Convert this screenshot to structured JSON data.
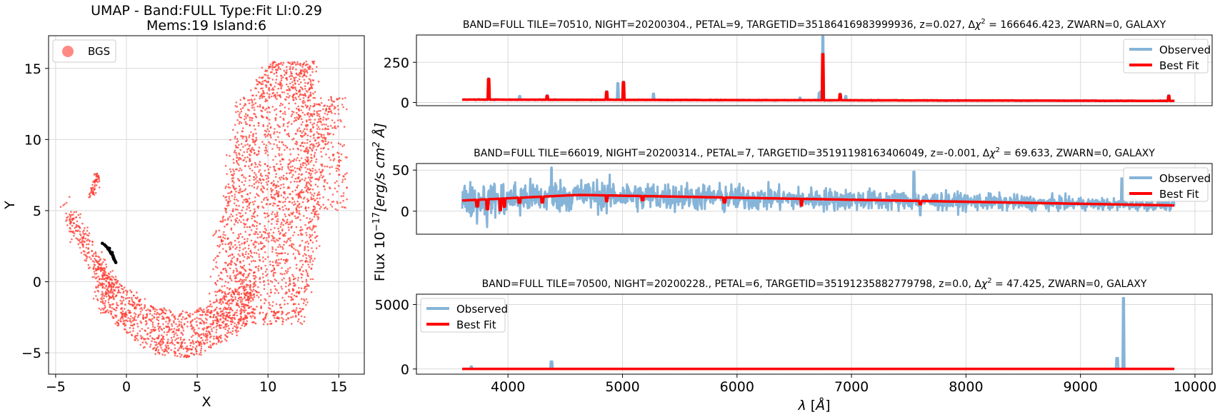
{
  "figure": {
    "ylabel": "Flux 10$^{-17}$[$erg/s\\,cm^2\\,\\AA$]",
    "xlabel": "λ [Å]"
  },
  "colors": {
    "observed": "#86b4d8",
    "best_fit": "#ff0000",
    "members": "#000000",
    "points": "#ff3b30",
    "grid": "#d9d9d9"
  },
  "chart_data": [
    {
      "type": "scatter",
      "title_line1": "UMAP  -  Band:FULL Type:Fit Ll:0.29",
      "title_line2": "Mems:19 Island:6",
      "xlabel": "X",
      "ylabel": "Y",
      "xlim": [
        -5.5,
        16.8
      ],
      "ylim": [
        -6.5,
        17.3
      ],
      "xticks": [
        -5,
        0,
        5,
        10,
        15
      ],
      "yticks": [
        -5,
        0,
        5,
        10,
        15
      ],
      "legend": {
        "position": "top-left",
        "entries": [
          "BGS"
        ]
      },
      "grid": true,
      "series": [
        {
          "name": "BGS",
          "color": "#ff3b30",
          "region": "u-shaped cloud",
          "x_range": [
            -4.4,
            15.6
          ],
          "y_range": [
            -5.4,
            16.2
          ]
        },
        {
          "members": [
            [
              -1.7,
              2.7
            ],
            [
              -1.55,
              2.6
            ],
            [
              -1.45,
              2.5
            ],
            [
              -1.35,
              2.4
            ],
            [
              -1.3,
              2.3
            ],
            [
              -1.2,
              2.2
            ],
            [
              -1.15,
              2.1
            ],
            [
              -1.1,
              2.0
            ],
            [
              -1.05,
              1.95
            ],
            [
              -1.0,
              1.9
            ],
            [
              -0.95,
              1.85
            ],
            [
              -0.9,
              1.7
            ],
            [
              -0.9,
              1.6
            ],
            [
              -0.85,
              1.55
            ],
            [
              -0.8,
              1.45
            ],
            [
              -0.75,
              1.35
            ],
            [
              -1.2,
              2.35
            ],
            [
              -1.0,
              2.05
            ],
            [
              -0.95,
              1.75
            ]
          ]
        }
      ]
    },
    {
      "type": "line",
      "title": "BAND=FULL TILE=70510, NIGHT=20200304., PETAL=9, TARGETID=35186416983999936, z=0.027, Δχ² = 166646.423, ZWARN=0, GALAXY",
      "xlim": [
        3200,
        10150
      ],
      "ylim": [
        -20,
        420
      ],
      "yticks": [
        0,
        250
      ],
      "legend": {
        "position": "top-right",
        "entries": [
          "Observed",
          "Best Fit"
        ]
      },
      "grid": true,
      "continuum": 18,
      "lines": [
        [
          3830,
          150
        ],
        [
          4103,
          40
        ],
        [
          4342,
          45
        ],
        [
          4863,
          70
        ],
        [
          4960,
          120
        ],
        [
          5008,
          130
        ],
        [
          5270,
          55
        ],
        [
          6550,
          30
        ],
        [
          6717,
          60
        ],
        [
          6731,
          70
        ],
        [
          6750,
          410
        ],
        [
          6900,
          55
        ],
        [
          6950,
          40
        ],
        [
          9770,
          45
        ]
      ],
      "fit_lines": [
        [
          3830,
          145
        ],
        [
          4342,
          40
        ],
        [
          4863,
          65
        ],
        [
          5008,
          125
        ],
        [
          6750,
          300
        ],
        [
          6900,
          50
        ],
        [
          9770,
          40
        ]
      ]
    },
    {
      "type": "line",
      "title": "BAND=FULL TILE=66019, NIGHT=20200314., PETAL=7, TARGETID=35191198163406049, z=-0.001, Δχ² = 69.633, ZWARN=0, GALAXY",
      "xlim": [
        3200,
        10150
      ],
      "ylim": [
        -28,
        58
      ],
      "yticks": [
        0,
        50
      ],
      "legend": {
        "position": "top-right",
        "entries": [
          "Observed",
          "Best Fit"
        ]
      },
      "grid": true,
      "fit_start": 13,
      "fit_peak": 20,
      "fit_end": 7,
      "dips": [
        [
          3730,
          8
        ],
        [
          3820,
          12
        ],
        [
          3934,
          14
        ],
        [
          3969,
          10
        ],
        [
          4101,
          6
        ],
        [
          4300,
          7
        ],
        [
          4861,
          7
        ],
        [
          5175,
          5
        ],
        [
          5890,
          6
        ],
        [
          6563,
          8
        ],
        [
          7600,
          4
        ]
      ],
      "obs_spikes": [
        [
          3590,
          52
        ],
        [
          3595,
          -25
        ],
        [
          4380,
          53
        ],
        [
          7545,
          48
        ],
        [
          7600,
          -5
        ],
        [
          9360,
          40
        ],
        [
          9900,
          -20
        ]
      ]
    },
    {
      "type": "line",
      "title": "BAND=FULL TILE=70500, NIGHT=20200228., PETAL=6, TARGETID=35191235882779798, z=0.0, Δχ² = 47.425, ZWARN=0, GALAXY",
      "xlim": [
        3200,
        10150
      ],
      "ylim": [
        -400,
        5800
      ],
      "xticks": [
        4000,
        5000,
        6000,
        7000,
        8000,
        9000,
        10000
      ],
      "yticks": [
        0,
        5000
      ],
      "legend": {
        "position": "top-left",
        "entries": [
          "Observed",
          "Best Fit"
        ]
      },
      "grid": true,
      "spikes": [
        [
          3680,
          200
        ],
        [
          4380,
          580
        ],
        [
          9320,
          850
        ],
        [
          9375,
          5500
        ]
      ]
    }
  ]
}
